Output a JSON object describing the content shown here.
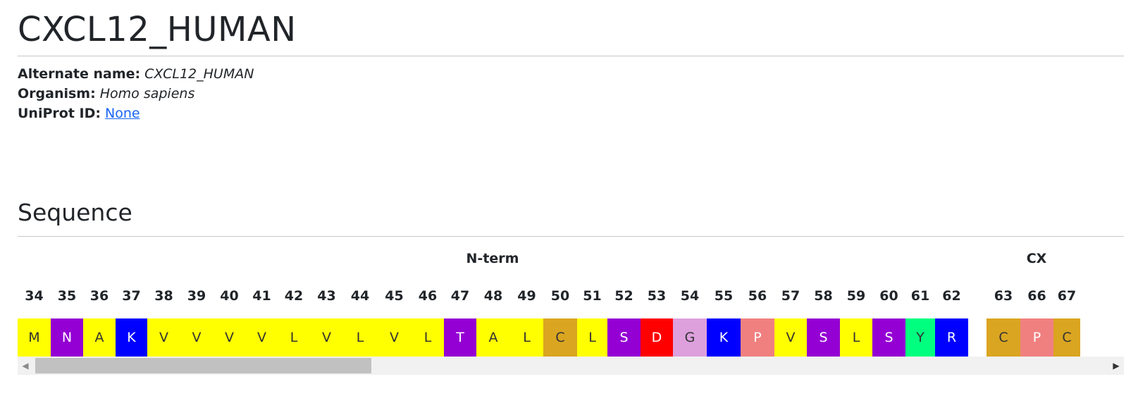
{
  "protein": {
    "title": "CXCL12_HUMAN",
    "alternate_name_label": "Alternate name:",
    "alternate_name": "CXCL12_HUMAN",
    "organism_label": "Organism:",
    "organism": "Homo sapiens",
    "uniprot_label": "UniProt ID:",
    "uniprot_id": "None"
  },
  "sequence": {
    "heading": "Sequence",
    "regions": [
      "N-term",
      "CX"
    ],
    "residues": [
      {
        "num": "34",
        "aa": "M",
        "color": "#ffff00"
      },
      {
        "num": "35",
        "aa": "N",
        "color": "#9400d3"
      },
      {
        "num": "36",
        "aa": "A",
        "color": "#ffff00"
      },
      {
        "num": "37",
        "aa": "K",
        "color": "#0000ff"
      },
      {
        "num": "38",
        "aa": "V",
        "color": "#ffff00"
      },
      {
        "num": "39",
        "aa": "V",
        "color": "#ffff00"
      },
      {
        "num": "40",
        "aa": "V",
        "color": "#ffff00"
      },
      {
        "num": "41",
        "aa": "V",
        "color": "#ffff00"
      },
      {
        "num": "42",
        "aa": "L",
        "color": "#ffff00"
      },
      {
        "num": "43",
        "aa": "V",
        "color": "#ffff00"
      },
      {
        "num": "44",
        "aa": "L",
        "color": "#ffff00"
      },
      {
        "num": "45",
        "aa": "V",
        "color": "#ffff00"
      },
      {
        "num": "46",
        "aa": "L",
        "color": "#ffff00"
      },
      {
        "num": "47",
        "aa": "T",
        "color": "#9400d3"
      },
      {
        "num": "48",
        "aa": "A",
        "color": "#ffff00"
      },
      {
        "num": "49",
        "aa": "L",
        "color": "#ffff00"
      },
      {
        "num": "50",
        "aa": "C",
        "color": "#daa520"
      },
      {
        "num": "51",
        "aa": "L",
        "color": "#ffff00"
      },
      {
        "num": "52",
        "aa": "S",
        "color": "#9400d3"
      },
      {
        "num": "53",
        "aa": "D",
        "color": "#ff0000"
      },
      {
        "num": "54",
        "aa": "G",
        "color": "#dda0dd"
      },
      {
        "num": "55",
        "aa": "K",
        "color": "#0000ff"
      },
      {
        "num": "56",
        "aa": "P",
        "color": "#f08080"
      },
      {
        "num": "57",
        "aa": "V",
        "color": "#ffff00"
      },
      {
        "num": "58",
        "aa": "S",
        "color": "#9400d3"
      },
      {
        "num": "59",
        "aa": "L",
        "color": "#ffff00"
      },
      {
        "num": "60",
        "aa": "S",
        "color": "#9400d3"
      },
      {
        "num": "61",
        "aa": "Y",
        "color": "#00ff7f"
      },
      {
        "num": "62",
        "aa": "R",
        "color": "#0000ff"
      },
      {
        "num": "63",
        "aa": "C",
        "color": "#daa520"
      },
      {
        "num": "66",
        "aa": "P",
        "color": "#f08080"
      },
      {
        "num": "67",
        "aa": "C",
        "color": "#daa520"
      }
    ]
  },
  "scrollbar": {
    "left_arrow": "◀",
    "right_arrow": "▶"
  }
}
